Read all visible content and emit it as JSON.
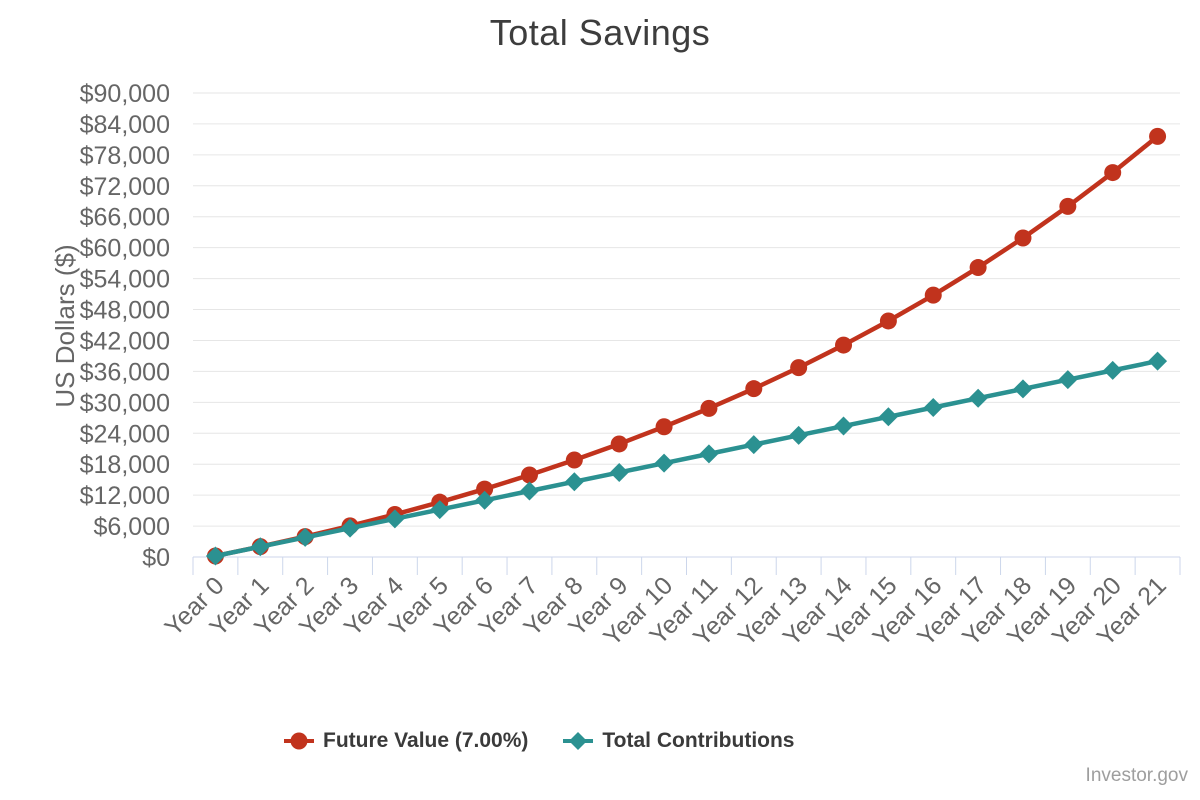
{
  "watermark": {
    "text": "Investor.gov"
  },
  "chart_data": {
    "type": "line",
    "title": "Total Savings",
    "xlabel": "",
    "ylabel": "US Dollars ($)",
    "categories": [
      "Year 0",
      "Year 1",
      "Year 2",
      "Year 3",
      "Year 4",
      "Year 5",
      "Year 6",
      "Year 7",
      "Year 8",
      "Year 9",
      "Year 10",
      "Year 11",
      "Year 12",
      "Year 13",
      "Year 14",
      "Year 15",
      "Year 16",
      "Year 17",
      "Year 18",
      "Year 19",
      "Year 20",
      "Year 21"
    ],
    "ylim": [
      0,
      90000
    ],
    "y_ticks": [
      0,
      6000,
      12000,
      18000,
      24000,
      30000,
      36000,
      42000,
      48000,
      54000,
      60000,
      66000,
      72000,
      78000,
      84000,
      90000
    ],
    "y_tick_prefix": "$",
    "grid": "horizontal",
    "legend_position": "bottom-center",
    "series": [
      {
        "name": "Future Value (7.00%)",
        "marker": "circle",
        "color": "#c1331d",
        "values": [
          200,
          2014,
          3955,
          6032,
          8254,
          10632,
          13176,
          15898,
          18811,
          21928,
          25263,
          28831,
          32650,
          36735,
          41107,
          45784,
          50789,
          56144,
          61874,
          68005,
          74566,
          81585
        ]
      },
      {
        "name": "Total Contributions",
        "marker": "diamond",
        "color": "#2b9191",
        "values": [
          200,
          2000,
          3800,
          5600,
          7400,
          9200,
          11000,
          12800,
          14600,
          16400,
          18200,
          20000,
          21800,
          23600,
          25400,
          27200,
          29000,
          30800,
          32600,
          34400,
          36200,
          38000
        ]
      }
    ],
    "style": {
      "grid_color": "#e6e6e6",
      "axis_color": "#ccd6eb",
      "label_color": "#666666",
      "title_color": "#3d3d3d",
      "legend_text_color": "#3a3a3a",
      "watermark_color": "#9e9e9e",
      "background": "#ffffff"
    }
  }
}
